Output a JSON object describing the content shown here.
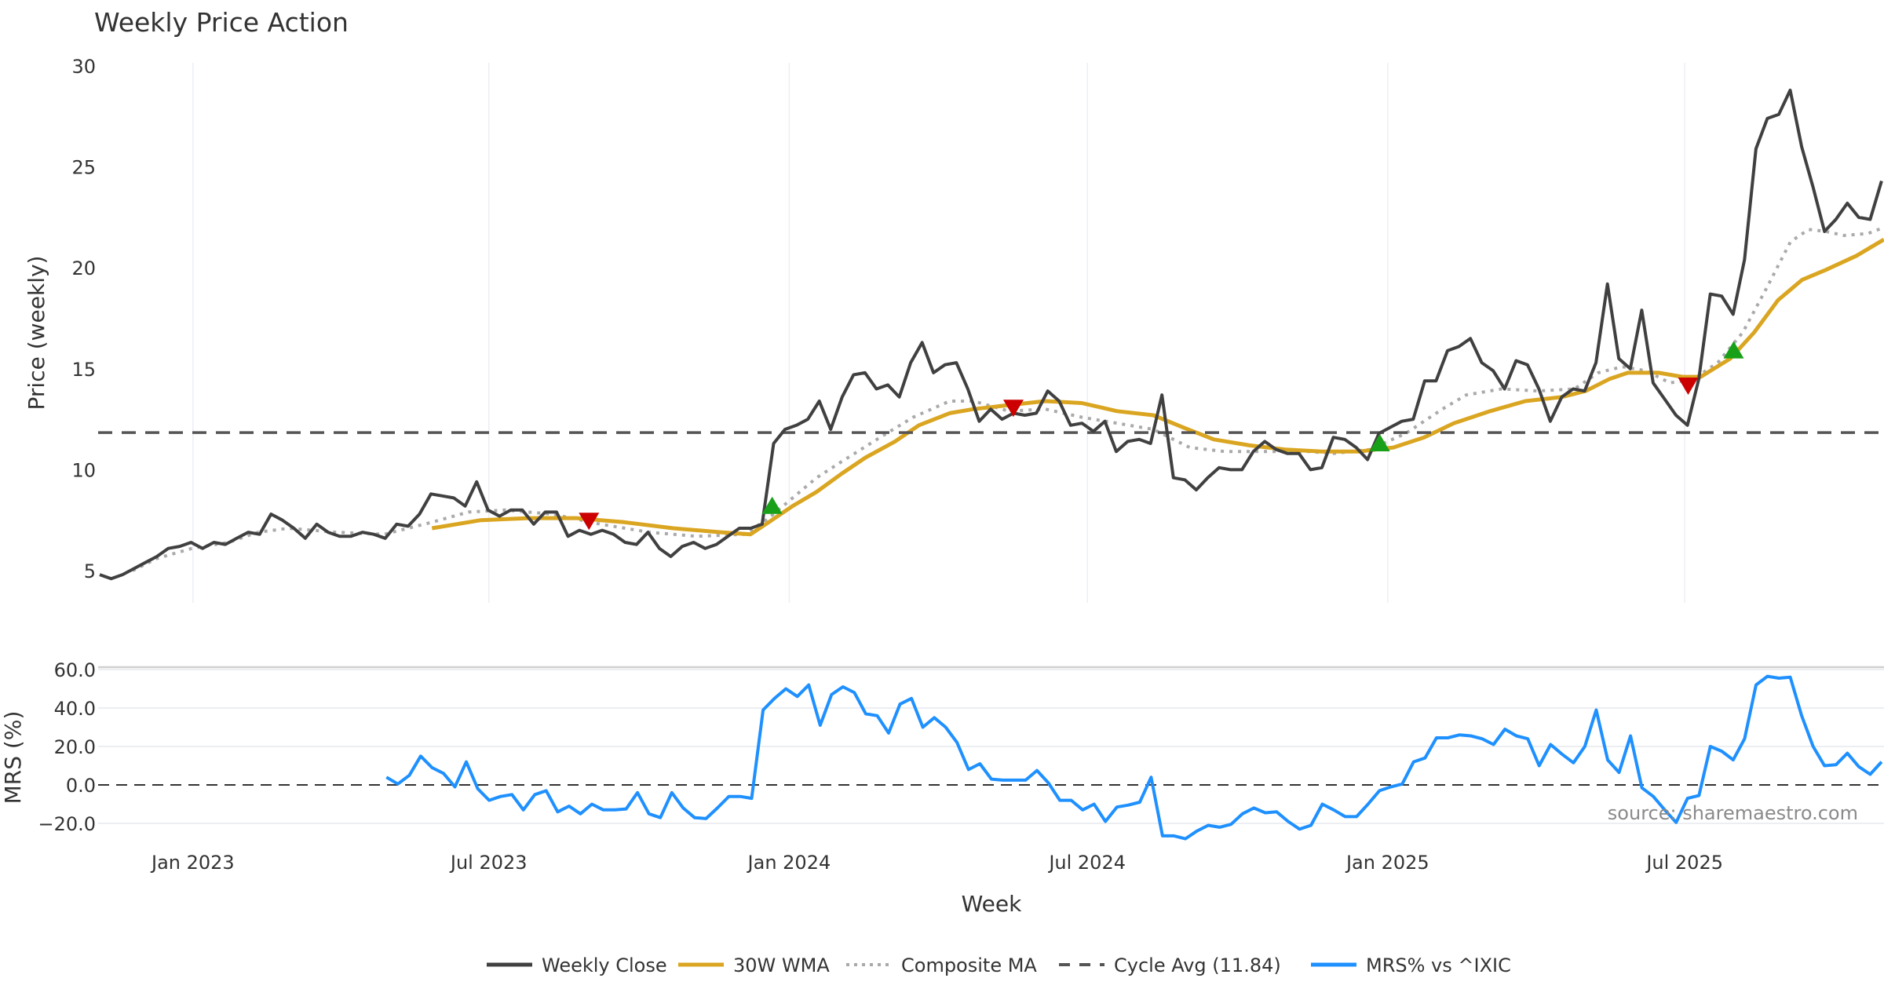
{
  "chart_data": [
    {
      "type": "line",
      "title": "Weekly Price Action",
      "xlabel": "",
      "ylabel": "Price (weekly)",
      "ylim": [
        3.4,
        31
      ],
      "yticks": [
        5,
        10,
        15,
        20,
        25,
        30
      ],
      "x_unit": "week index",
      "xlim": [
        0,
        157
      ],
      "xticks": [
        {
          "label": "Jan 2023",
          "week": 8.2
        },
        {
          "label": "Jul 2023",
          "week": 34.2
        },
        {
          "label": "Jan 2024",
          "week": 60.6
        },
        {
          "label": "Jul 2024",
          "week": 86.8
        },
        {
          "label": "Jan 2025",
          "week": 113.2
        },
        {
          "label": "Jul 2025",
          "week": 139.3
        }
      ],
      "grid": "vertical",
      "series": [
        {
          "name": "Weekly Close",
          "color": "#404040",
          "style": "solid",
          "start_week": 0,
          "end_week": 156.6,
          "values": [
            4.8,
            4.6,
            4.8,
            5.1,
            5.4,
            5.7,
            6.1,
            6.2,
            6.4,
            6.1,
            6.4,
            6.3,
            6.6,
            6.9,
            6.8,
            7.8,
            7.5,
            7.1,
            6.6,
            7.3,
            6.9,
            6.7,
            6.7,
            6.9,
            6.8,
            6.6,
            7.3,
            7.2,
            7.8,
            8.8,
            8.7,
            8.6,
            8.2,
            9.4,
            8.0,
            7.7,
            8.0,
            8.0,
            7.3,
            7.9,
            7.9,
            6.7,
            7.0,
            6.8,
            7.0,
            6.8,
            6.4,
            6.3,
            6.9,
            6.1,
            5.7,
            6.2,
            6.4,
            6.1,
            6.3,
            6.7,
            7.1,
            7.1,
            7.3,
            11.3,
            12.0,
            12.2,
            12.5,
            13.4,
            12.0,
            13.6,
            14.7,
            14.8,
            14.0,
            14.2,
            13.6,
            15.3,
            16.3,
            14.8,
            15.2,
            15.3,
            14.0,
            12.4,
            13.0,
            12.5,
            12.8,
            12.7,
            12.8,
            13.9,
            13.4,
            12.2,
            12.3,
            11.9,
            12.4,
            10.9,
            11.4,
            11.5,
            11.3,
            13.7,
            9.6,
            9.5,
            9.0,
            9.6,
            10.1,
            10.0,
            10.0,
            10.9,
            11.4,
            11.0,
            10.8,
            10.8,
            10.0,
            10.1,
            11.6,
            11.5,
            11.1,
            10.5,
            11.8,
            12.1,
            12.4,
            12.5,
            14.4,
            14.4,
            15.9,
            16.1,
            16.5,
            15.3,
            14.9,
            14.0,
            15.4,
            15.2,
            14.0,
            12.4,
            13.6,
            14.0,
            13.9,
            15.3,
            19.2,
            15.5,
            15.0,
            17.9,
            14.3,
            13.5,
            12.7,
            12.2,
            14.5,
            18.7,
            18.6,
            17.7,
            20.4,
            25.9,
            27.4,
            27.6,
            28.8,
            26.0,
            24.0,
            21.8,
            22.4,
            23.2,
            22.5,
            22.4,
            24.3
          ]
        },
        {
          "name": "30W WMA",
          "color": "#DAA520",
          "style": "solid",
          "points": [
            [
              29.2,
              7.1
            ],
            [
              33.5,
              7.5
            ],
            [
              37.7,
              7.6
            ],
            [
              41.9,
              7.6
            ],
            [
              46.1,
              7.4
            ],
            [
              50.4,
              7.1
            ],
            [
              54.6,
              6.9
            ],
            [
              57.2,
              6.8
            ],
            [
              58.8,
              7.4
            ],
            [
              60.9,
              8.2
            ],
            [
              63,
              8.9
            ],
            [
              65.2,
              9.8
            ],
            [
              67.3,
              10.6
            ],
            [
              69.9,
              11.4
            ],
            [
              72,
              12.2
            ],
            [
              74.7,
              12.8
            ],
            [
              76.8,
              13.0
            ],
            [
              79.9,
              13.2
            ],
            [
              83.1,
              13.4
            ],
            [
              86.3,
              13.3
            ],
            [
              89.4,
              12.9
            ],
            [
              92.6,
              12.7
            ],
            [
              95.2,
              12.1
            ],
            [
              97.9,
              11.5
            ],
            [
              101.1,
              11.2
            ],
            [
              104.2,
              11.0
            ],
            [
              107.4,
              10.9
            ],
            [
              110.6,
              10.9
            ],
            [
              113.7,
              11.1
            ],
            [
              116.4,
              11.6
            ],
            [
              119,
              12.3
            ],
            [
              122.2,
              12.9
            ],
            [
              125.3,
              13.4
            ],
            [
              128.5,
              13.6
            ],
            [
              130.6,
              13.9
            ],
            [
              132.7,
              14.5
            ],
            [
              134.3,
              14.8
            ],
            [
              137,
              14.8
            ],
            [
              139.1,
              14.6
            ],
            [
              140.7,
              14.6
            ],
            [
              143.3,
              15.5
            ],
            [
              145.4,
              16.8
            ],
            [
              147.5,
              18.4
            ],
            [
              149.6,
              19.4
            ],
            [
              151.7,
              19.9
            ],
            [
              154.4,
              20.6
            ],
            [
              156.8,
              21.4
            ]
          ]
        },
        {
          "name": "Composite MA",
          "color": "#aaaaaa",
          "style": "dotted",
          "points": [
            [
              2.9,
              5.0
            ],
            [
              5,
              5.6
            ],
            [
              8.1,
              6.1
            ],
            [
              11.3,
              6.4
            ],
            [
              13.9,
              6.9
            ],
            [
              16.6,
              7.1
            ],
            [
              20.8,
              6.9
            ],
            [
              25,
              6.8
            ],
            [
              29.2,
              7.4
            ],
            [
              32.4,
              7.9
            ],
            [
              35.6,
              8.0
            ],
            [
              39.8,
              7.8
            ],
            [
              44,
              7.3
            ],
            [
              48.3,
              6.9
            ],
            [
              52.5,
              6.7
            ],
            [
              56.7,
              6.8
            ],
            [
              58.8,
              7.6
            ],
            [
              60.9,
              8.6
            ],
            [
              63,
              9.6
            ],
            [
              65.2,
              10.4
            ],
            [
              68.3,
              11.5
            ],
            [
              71.5,
              12.6
            ],
            [
              74.7,
              13.4
            ],
            [
              76.8,
              13.4
            ],
            [
              79.9,
              12.9
            ],
            [
              83.1,
              13.0
            ],
            [
              86.3,
              12.6
            ],
            [
              89.4,
              12.3
            ],
            [
              92.6,
              12.0
            ],
            [
              95.8,
              11.1
            ],
            [
              98.9,
              10.9
            ],
            [
              103.2,
              10.9
            ],
            [
              106.3,
              10.9
            ],
            [
              108.4,
              10.8
            ],
            [
              111.6,
              11.0
            ],
            [
              114.8,
              11.8
            ],
            [
              118,
              13.0
            ],
            [
              120.1,
              13.7
            ],
            [
              123.2,
              14.0
            ],
            [
              126.4,
              13.9
            ],
            [
              129.6,
              14.0
            ],
            [
              131.7,
              14.8
            ],
            [
              133.8,
              15.1
            ],
            [
              135.9,
              14.9
            ],
            [
              138,
              14.3
            ],
            [
              140.1,
              14.5
            ],
            [
              142.2,
              15.3
            ],
            [
              144.4,
              16.8
            ],
            [
              146.5,
              19.0
            ],
            [
              148.6,
              21.3
            ],
            [
              150.2,
              21.9
            ],
            [
              151.7,
              21.8
            ],
            [
              153.3,
              21.6
            ],
            [
              155.4,
              21.7
            ],
            [
              156.8,
              22.0
            ]
          ]
        },
        {
          "name": "Cycle Avg (11.84)",
          "color": "#555555",
          "style": "dashed",
          "value": 11.84
        }
      ],
      "signals": [
        {
          "type": "sell",
          "week": 43,
          "value": 7.4,
          "color": "#cc0000"
        },
        {
          "type": "buy",
          "week": 59.1,
          "value": 8.2,
          "color": "#18a018"
        },
        {
          "type": "sell",
          "week": 80.3,
          "value": 13.0,
          "color": "#cc0000"
        },
        {
          "type": "buy",
          "week": 112.5,
          "value": 11.3,
          "color": "#18a018"
        },
        {
          "type": "sell",
          "week": 139.6,
          "value": 14.1,
          "color": "#cc0000"
        },
        {
          "type": "buy",
          "week": 143.6,
          "value": 15.9,
          "color": "#18a018"
        }
      ]
    },
    {
      "type": "line",
      "xlabel": "Week",
      "ylabel": "MRS (%)",
      "ylim": [
        -30,
        62
      ],
      "yticks": [
        {
          "value": 60,
          "label": "60.0"
        },
        {
          "value": 40,
          "label": "40.0"
        },
        {
          "value": 20,
          "label": "20.0"
        },
        {
          "value": 0,
          "label": "0.0"
        },
        {
          "value": -20,
          "label": "−20.0"
        }
      ],
      "grid": "horizontal",
      "zero_line": 0,
      "series": [
        {
          "name": "MRS% vs ^IXIC",
          "color": "#1E90FF",
          "style": "solid",
          "start_week": 25.2,
          "end_week": 156.6,
          "values": [
            4,
            0.5,
            5,
            15,
            9,
            6,
            -1,
            12,
            -2,
            -8,
            -6,
            -5,
            -13,
            -5,
            -3,
            -14,
            -11,
            -15,
            -10,
            -13,
            -13,
            -12.5,
            -4,
            -15,
            -17,
            -4,
            -12,
            -17,
            -17.5,
            -12,
            -6,
            -6,
            -7,
            39,
            45,
            50,
            46,
            52,
            31,
            47,
            51,
            48,
            37,
            36,
            27,
            42,
            45,
            30,
            35,
            30,
            22,
            8,
            11,
            3,
            2.5,
            2.5,
            2.5,
            7.5,
            1,
            -8,
            -8,
            -13,
            -10,
            -19,
            -11.5,
            -10.5,
            -9,
            4,
            -26.5,
            -26.5,
            -28,
            -24,
            -21,
            -22,
            -20.5,
            -15,
            -12,
            -14.5,
            -14,
            -19,
            -23,
            -21,
            -10,
            -13,
            -16.5,
            -16.5,
            -10,
            -3,
            -1,
            0.5,
            12,
            14,
            24.5,
            24.5,
            26,
            25.5,
            24,
            21,
            29,
            25.5,
            24,
            10,
            21,
            16,
            11.5,
            20,
            39,
            13,
            6.5,
            25.5,
            -1.5,
            -6,
            -13,
            -19.5,
            -7,
            -5.5,
            20,
            17.5,
            13,
            24,
            52,
            56.5,
            55.5,
            56,
            36,
            20,
            10,
            10.5,
            16.5,
            9.5,
            5.5,
            12
          ]
        }
      ],
      "annotation": "source: sharemaestro.com"
    }
  ],
  "legend": {
    "placement": "bottom-center",
    "items": [
      {
        "label": "Weekly Close",
        "color": "#404040",
        "style": "solid"
      },
      {
        "label": "30W WMA",
        "color": "#DAA520",
        "style": "solid"
      },
      {
        "label": "Composite MA",
        "color": "#aaaaaa",
        "style": "dotted"
      },
      {
        "label": "Cycle Avg (11.84)",
        "color": "#555555",
        "style": "dashed"
      },
      {
        "label": "MRS% vs ^IXIC",
        "color": "#1E90FF",
        "style": "solid"
      }
    ]
  }
}
